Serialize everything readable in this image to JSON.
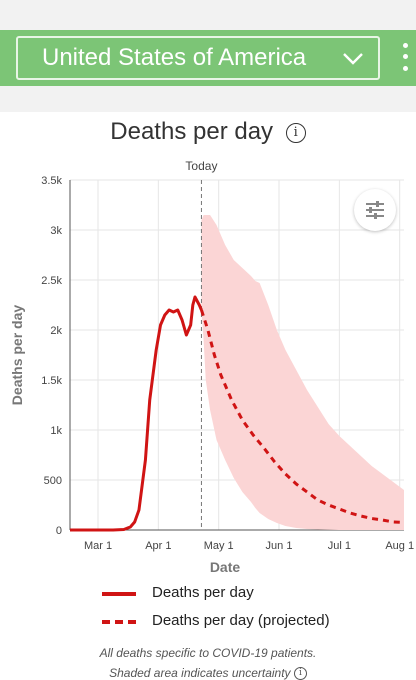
{
  "header": {
    "country": "United States of America",
    "accent_color": "#7cc576",
    "dropdown_icon": "chevron-down-icon",
    "menu_icon": "more-vert-icon"
  },
  "chart_title": "Deaths per day",
  "chart_data": {
    "type": "line",
    "title": "Deaths per day",
    "xlabel": "Date",
    "ylabel": "Deaths per day",
    "today_label": "Today",
    "x_ticks": [
      "Mar 1",
      "Apr 1",
      "May 1",
      "Jun 1",
      "Jul 1",
      "Aug 1"
    ],
    "y_ticks": [
      "0",
      "500",
      "1k",
      "1.5k",
      "2k",
      "2.5k",
      "3k",
      "3.5k"
    ],
    "ylim": [
      0,
      3500
    ],
    "grid": true,
    "legend_position": "bottom",
    "today_day": 61,
    "series": [
      {
        "name": "Deaths per day",
        "style": "solid",
        "color": "#d01414",
        "days": [
          0,
          10,
          20,
          25,
          28,
          30,
          32,
          35,
          37,
          40,
          42,
          44,
          46,
          48,
          50,
          52,
          54,
          56,
          57,
          58,
          60,
          61
        ],
        "values": [
          0,
          0,
          0,
          5,
          30,
          80,
          200,
          700,
          1300,
          1800,
          2050,
          2150,
          2200,
          2180,
          2200,
          2100,
          1950,
          2050,
          2250,
          2330,
          2250,
          2200
        ]
      },
      {
        "name": "Deaths per day (projected)",
        "style": "dashed",
        "color": "#d01414",
        "days": [
          61,
          64,
          67,
          70,
          75,
          80,
          85,
          90,
          95,
          100,
          105,
          110,
          115,
          120,
          125,
          130,
          135,
          140,
          145,
          150,
          155
        ],
        "values": [
          2200,
          2000,
          1750,
          1550,
          1300,
          1100,
          950,
          820,
          680,
          560,
          460,
          380,
          300,
          250,
          210,
          170,
          140,
          115,
          100,
          80,
          75
        ]
      }
    ],
    "uncertainty_band": {
      "color": "#fbd5d5",
      "days": [
        61,
        62,
        63,
        65,
        68,
        72,
        76,
        80,
        84,
        86,
        88,
        92,
        96,
        100,
        105,
        110,
        115,
        120,
        125,
        130,
        135,
        140,
        145,
        150,
        155
      ],
      "upper": [
        3100,
        3150,
        3150,
        3150,
        3050,
        2850,
        2700,
        2620,
        2540,
        2490,
        2470,
        2250,
        2000,
        1800,
        1600,
        1400,
        1230,
        1060,
        940,
        840,
        740,
        640,
        560,
        480,
        400
      ],
      "lower": [
        2200,
        1900,
        1500,
        1200,
        900,
        700,
        520,
        380,
        280,
        220,
        170,
        110,
        70,
        40,
        20,
        10,
        5,
        2,
        0,
        0,
        0,
        0,
        0,
        0,
        0
      ]
    }
  },
  "legend": [
    {
      "label": "Deaths per day",
      "style": "solid"
    },
    {
      "label": "Deaths per day (projected)",
      "style": "dashed"
    }
  ],
  "footnote_1": "All deaths specific to COVID-19 patients.",
  "footnote_2": "Shaded area indicates uncertainty"
}
